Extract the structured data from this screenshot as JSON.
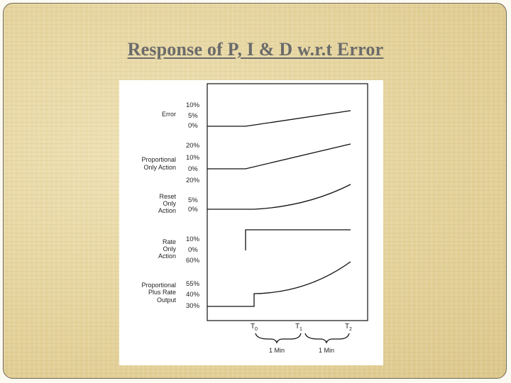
{
  "slide": {
    "title": "Response of P, I & D w.r.t Error"
  },
  "diagram": {
    "rows": [
      {
        "label_lines": [
          "Error"
        ],
        "scale": [
          "10%",
          "5%",
          "0%"
        ]
      },
      {
        "label_lines": [
          "Proportional",
          "Only Action"
        ],
        "scale": [
          "20%",
          "10%",
          "0%"
        ]
      },
      {
        "label_lines": [
          "Reset",
          "Only",
          "Action"
        ],
        "scale": [
          "20%",
          "5%",
          "0%"
        ]
      },
      {
        "label_lines": [
          "Rate",
          "Only",
          "Action"
        ],
        "scale": [
          "10%",
          "0%"
        ]
      },
      {
        "label_lines": [
          "Proportional",
          "Plus Rate",
          "Output"
        ],
        "scale": [
          "60%",
          "55%",
          "40%",
          "30%"
        ]
      }
    ],
    "time_marks": [
      {
        "letter": "T",
        "sub": "0"
      },
      {
        "letter": "T",
        "sub": "1"
      },
      {
        "letter": "T",
        "sub": "2"
      }
    ],
    "intervals": [
      "1 Min",
      "1 Min"
    ]
  },
  "colors": {
    "background": "#e9d9a6",
    "title": "#6b6b6b",
    "figure_bg": "#ffffff",
    "ink": "#111111"
  }
}
